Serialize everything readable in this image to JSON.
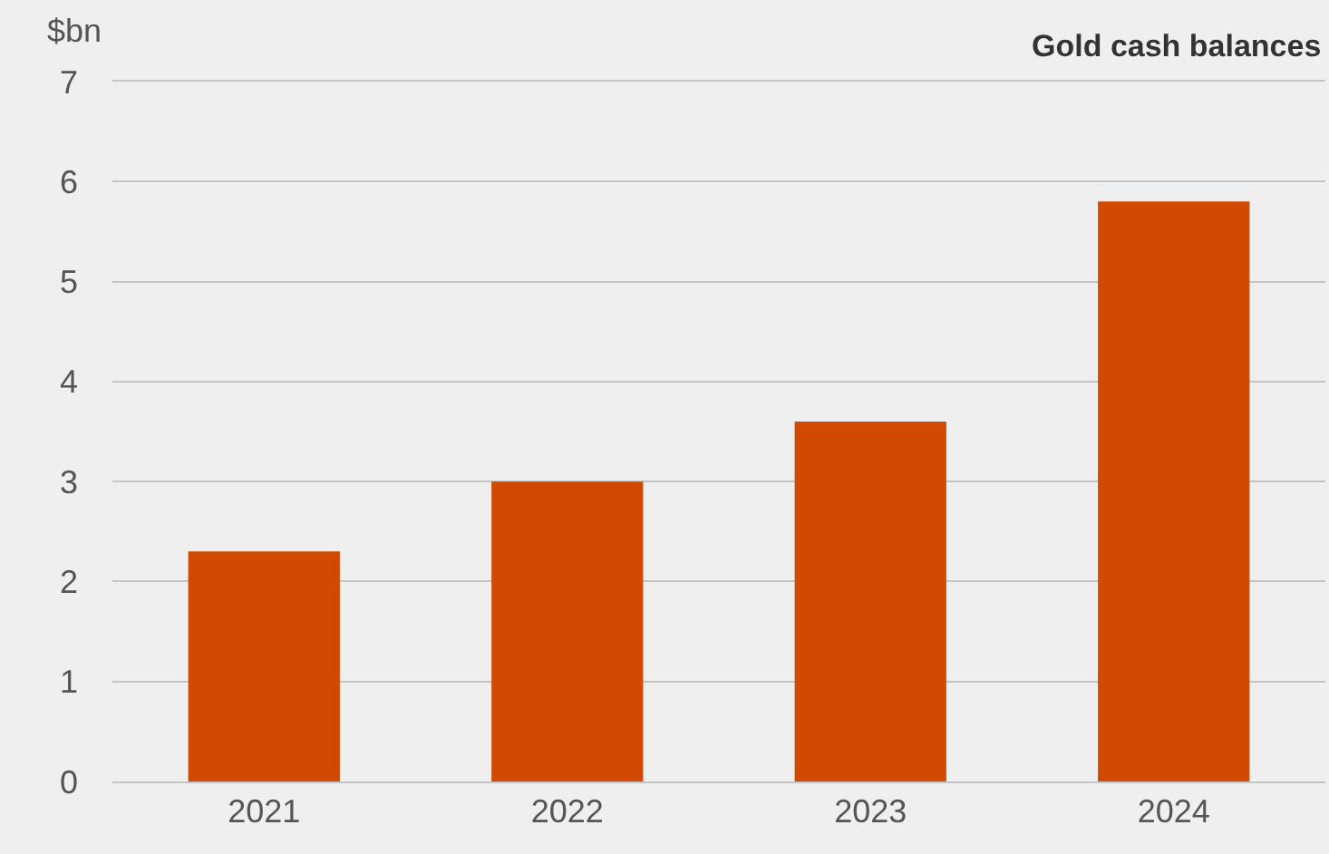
{
  "chart_data": {
    "type": "bar",
    "title": "Gold cash balances",
    "ylabel": "$bn",
    "categories": [
      "2021",
      "2022",
      "2023",
      "2024"
    ],
    "values": [
      2.3,
      3.0,
      3.6,
      5.8
    ],
    "color": "#d04a02",
    "ylim": [
      0,
      7
    ],
    "yticks": [
      0,
      1,
      2,
      3,
      4,
      5,
      6,
      7
    ],
    "grid": "y"
  }
}
